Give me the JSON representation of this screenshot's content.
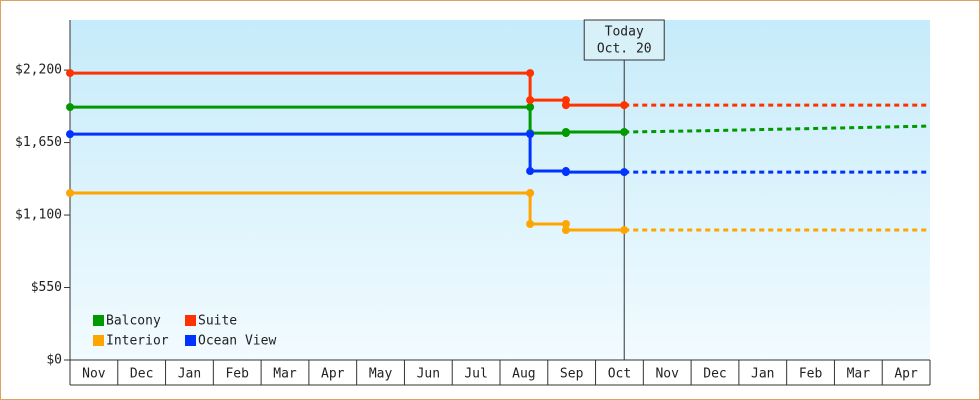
{
  "chart_data": {
    "type": "line",
    "categories": [
      "Nov",
      "Dec",
      "Jan",
      "Feb",
      "Mar",
      "Apr",
      "May",
      "Jun",
      "Jul",
      "Aug",
      "Sep",
      "Oct",
      "Nov",
      "Dec",
      "Jan",
      "Feb",
      "Mar",
      "Apr"
    ],
    "xlim": [
      0,
      18
    ],
    "x": [
      0,
      9.63,
      9.63,
      10.38,
      10.38,
      11.6
    ],
    "forecast_x": [
      11.6,
      13,
      14,
      16,
      18
    ],
    "ylim": [
      0,
      2580
    ],
    "yticks": [
      {
        "value": 0,
        "label": "$0"
      },
      {
        "value": 550,
        "label": "$550"
      },
      {
        "value": 1100,
        "label": "$1,100"
      },
      {
        "value": 1650,
        "label": "$1,650"
      },
      {
        "value": 2200,
        "label": "$2,200"
      }
    ],
    "legend": "lower left",
    "series": [
      {
        "name": "Balcony",
        "color": "#009900",
        "values": [
          1919,
          1919,
          1722,
          1722,
          1730,
          1730
        ],
        "forecast": [
          1730,
          1738,
          1745,
          1760,
          1775
        ]
      },
      {
        "name": "Suite",
        "color": "#ff3300",
        "values": [
          2177,
          2177,
          1972,
          1972,
          1934,
          1934
        ],
        "forecast": [
          1934,
          1934,
          1934,
          1934,
          1934
        ]
      },
      {
        "name": "Interior",
        "color": "#ffa500",
        "values": [
          1267,
          1267,
          1032,
          1032,
          986,
          986
        ],
        "forecast": [
          986,
          986,
          986,
          986,
          986
        ]
      },
      {
        "name": "Ocean View",
        "color": "#0033ff",
        "values": [
          1714,
          1714,
          1434,
          1434,
          1426,
          1426
        ],
        "forecast": [
          1426,
          1426,
          1426,
          1426,
          1426
        ]
      }
    ],
    "today": {
      "x": 11.6,
      "label": [
        "Today",
        "Oct. 20"
      ]
    }
  }
}
